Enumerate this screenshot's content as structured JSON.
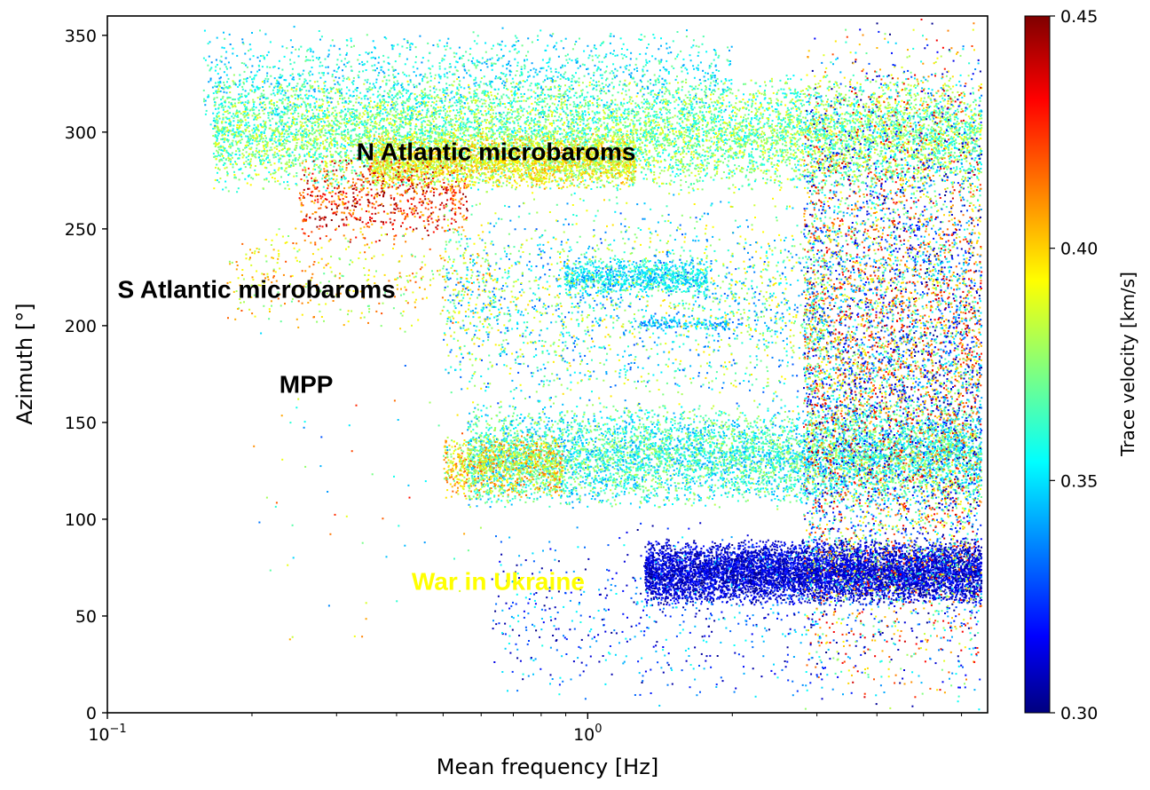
{
  "chart_data": {
    "type": "scatter",
    "xlabel": "Mean frequency [Hz]",
    "ylabel": "Azimuth [°]",
    "x_scale": "log",
    "xlim": [
      0.1,
      6.8
    ],
    "ylim": [
      0,
      360
    ],
    "x_ticks": [
      {
        "value": 0.1,
        "base": "10",
        "exp": "−1"
      },
      {
        "value": 1.0,
        "base": "10",
        "exp": "0"
      }
    ],
    "y_ticks": [
      {
        "value": 0,
        "label": "0"
      },
      {
        "value": 50,
        "label": "50"
      },
      {
        "value": 100,
        "label": "100"
      },
      {
        "value": 150,
        "label": "150"
      },
      {
        "value": 200,
        "label": "200"
      },
      {
        "value": 250,
        "label": "250"
      },
      {
        "value": 300,
        "label": "300"
      },
      {
        "value": 350,
        "label": "350"
      }
    ],
    "colorbar": {
      "label": "Trace velocity [km/s]",
      "colormap": "jet",
      "range": [
        0.3,
        0.45
      ],
      "ticks": [
        {
          "value": 0.3,
          "label": "0.30"
        },
        {
          "value": 0.35,
          "label": "0.35"
        },
        {
          "value": 0.4,
          "label": "0.40"
        },
        {
          "value": 0.45,
          "label": "0.45"
        }
      ]
    },
    "annotations": [
      {
        "text": "N Atlantic microbaroms",
        "x": 0.33,
        "y": 290,
        "color": "#000000"
      },
      {
        "text": "S Atlantic microbaroms",
        "x": 0.105,
        "y": 219,
        "color": "#000000"
      },
      {
        "text": "MPP",
        "x": 0.228,
        "y": 170,
        "color": "#000000"
      },
      {
        "text": "War in Ukraine",
        "x": 0.43,
        "y": 68,
        "color": "#ffff00"
      }
    ],
    "clusters": [
      {
        "name_hidden": "n_atlantic",
        "xlog": [
          -0.78,
          0.82
        ],
        "y": [
          268,
          330
        ],
        "v": [
          0.352,
          0.395
        ],
        "n": 9000
      },
      {
        "name_hidden": "n_atlantic_core",
        "xlog": [
          -0.45,
          0.1
        ],
        "y": [
          270,
          300
        ],
        "v": [
          0.375,
          0.41
        ],
        "n": 2500
      },
      {
        "name_hidden": "n_atlantic_upper",
        "xlog": [
          -0.8,
          0.3
        ],
        "y": [
          300,
          355
        ],
        "v": [
          0.34,
          0.375
        ],
        "n": 1500
      },
      {
        "name_hidden": "scatter_red",
        "xlog": [
          -0.6,
          -0.25
        ],
        "y": [
          240,
          290
        ],
        "v": [
          0.4,
          0.45
        ],
        "n": 700
      },
      {
        "name_hidden": "s_atlantic",
        "xlog": [
          -0.75,
          -0.2
        ],
        "y": [
          195,
          255
        ],
        "v": [
          0.37,
          0.42
        ],
        "n": 400
      },
      {
        "name_hidden": "band_225",
        "xlog": [
          -0.05,
          0.25
        ],
        "y": [
          215,
          235
        ],
        "v": [
          0.34,
          0.37
        ],
        "n": 900
      },
      {
        "name_hidden": "band_200",
        "xlog": [
          0.1,
          0.3
        ],
        "y": [
          197,
          205
        ],
        "v": [
          0.33,
          0.36
        ],
        "n": 150
      },
      {
        "name_hidden": "east_130",
        "xlog": [
          -0.25,
          0.82
        ],
        "y": [
          105,
          160
        ],
        "v": [
          0.34,
          0.385
        ],
        "n": 6500
      },
      {
        "name_hidden": "east_130_warm",
        "xlog": [
          -0.3,
          -0.05
        ],
        "y": [
          110,
          145
        ],
        "v": [
          0.37,
          0.42
        ],
        "n": 900
      },
      {
        "name_hidden": "ukraine",
        "xlog": [
          0.12,
          0.82
        ],
        "y": [
          55,
          90
        ],
        "v": [
          0.3,
          0.325
        ],
        "n": 7000
      },
      {
        "name_hidden": "high_f_column",
        "xlog": [
          0.45,
          0.82
        ],
        "y": [
          0,
          360
        ],
        "v": [
          0.3,
          0.44
        ],
        "n": 8000
      },
      {
        "name_hidden": "sparse_mid",
        "xlog": [
          -0.3,
          0.5
        ],
        "y": [
          150,
          270
        ],
        "v": [
          0.33,
          0.4
        ],
        "n": 2200
      },
      {
        "name_hidden": "sparse_low",
        "xlog": [
          -0.2,
          0.5
        ],
        "y": [
          0,
          100
        ],
        "v": [
          0.3,
          0.36
        ],
        "n": 600
      },
      {
        "name_hidden": "sparse_far",
        "xlog": [
          -0.7,
          -0.2
        ],
        "y": [
          30,
          200
        ],
        "v": [
          0.33,
          0.43
        ],
        "n": 60
      }
    ]
  }
}
